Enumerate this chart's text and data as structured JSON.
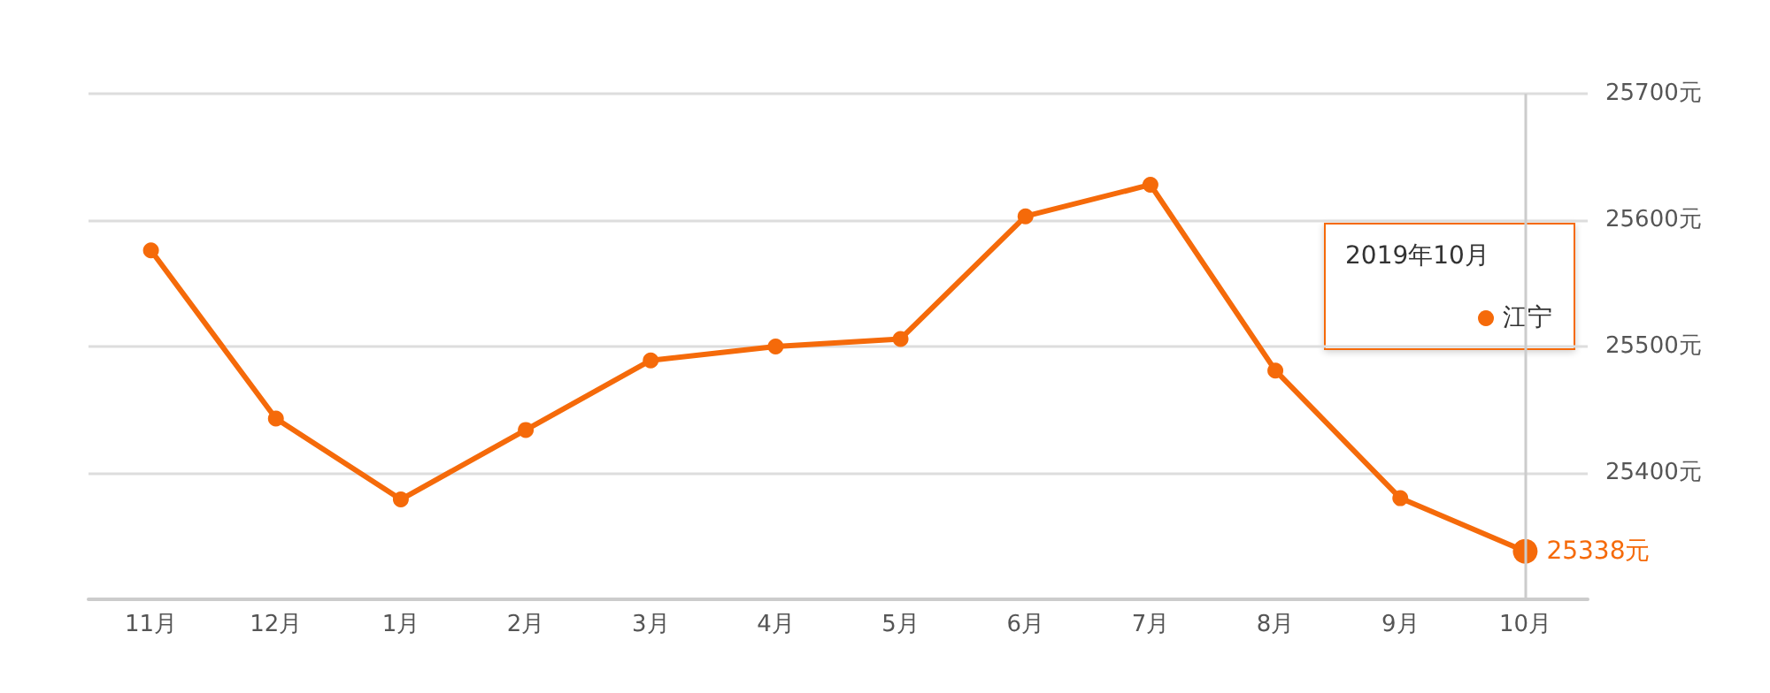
{
  "chart_data": {
    "type": "line",
    "categories": [
      "11月",
      "12月",
      "1月",
      "2月",
      "3月",
      "4月",
      "5月",
      "6月",
      "7月",
      "8月",
      "9月",
      "10月"
    ],
    "series": [
      {
        "name": "江宁",
        "color": "#f56a0a",
        "values": [
          25576,
          25443,
          25379,
          25434,
          25489,
          25500,
          25506,
          25603,
          25628,
          25481,
          25380,
          25338
        ],
        "value_labels": [
          null,
          null,
          null,
          null,
          null,
          null,
          null,
          null,
          null,
          null,
          null,
          "25338元"
        ]
      }
    ],
    "ylim": [
      25300,
      25700
    ],
    "yticks": [
      {
        "value": 25400,
        "label": "25400元"
      },
      {
        "value": 25500,
        "label": "25500元"
      },
      {
        "value": 25600,
        "label": "25600元"
      },
      {
        "value": 25700,
        "label": "25700元"
      }
    ],
    "grid": "y",
    "legend": "top right",
    "marker": "circle",
    "line_style": "solid",
    "ref_lines": [
      {
        "axis": "x",
        "value": "10月",
        "color": "#cccccc"
      }
    ],
    "annotations": [
      "2019年10月"
    ]
  }
}
